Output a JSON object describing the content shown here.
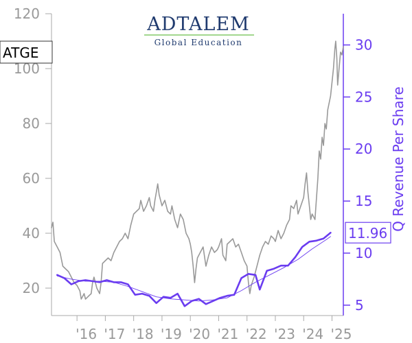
{
  "logo": {
    "name": "ADTALEM",
    "tagline": "Global Education",
    "name_color": "#1f3a6e",
    "accent_color": "#6abf4b"
  },
  "ticker": "ATGE",
  "chart_data": {
    "type": "line",
    "xlabel": "",
    "x_tick_labels": [
      "'16",
      "'17",
      "'18",
      "'19",
      "'20",
      "'21",
      "'22",
      "'23",
      "'24",
      "'25"
    ],
    "x_tick_years": [
      2016,
      2017,
      2018,
      2019,
      2020,
      2021,
      2022,
      2023,
      2024,
      2025
    ],
    "xlim": [
      2015.1,
      2025.4
    ],
    "left_axis": {
      "label": "",
      "ylim": [
        10,
        120
      ],
      "ticks": [
        20,
        40,
        60,
        80,
        100,
        120
      ],
      "color": "#999999"
    },
    "right_axis": {
      "label": "Q Revenue Per Share",
      "ylim": [
        4,
        33
      ],
      "ticks": [
        5,
        10,
        15,
        20,
        25,
        30
      ],
      "color": "#6a3cf0"
    },
    "last_value_label": "11.96",
    "series": [
      {
        "axis": "left",
        "color": "#999999",
        "points": [
          [
            2015.1,
            42
          ],
          [
            2015.15,
            44
          ],
          [
            2015.2,
            37
          ],
          [
            2015.3,
            35
          ],
          [
            2015.4,
            33
          ],
          [
            2015.5,
            28
          ],
          [
            2015.6,
            27
          ],
          [
            2015.7,
            26
          ],
          [
            2015.8,
            24
          ],
          [
            2015.9,
            22
          ],
          [
            2016.0,
            21
          ],
          [
            2016.1,
            19
          ],
          [
            2016.15,
            16
          ],
          [
            2016.25,
            18
          ],
          [
            2016.3,
            16
          ],
          [
            2016.4,
            17
          ],
          [
            2016.5,
            18
          ],
          [
            2016.55,
            22
          ],
          [
            2016.6,
            24
          ],
          [
            2016.7,
            20
          ],
          [
            2016.8,
            18
          ],
          [
            2016.85,
            22
          ],
          [
            2016.9,
            29
          ],
          [
            2017.0,
            30
          ],
          [
            2017.1,
            31
          ],
          [
            2017.2,
            30
          ],
          [
            2017.3,
            33
          ],
          [
            2017.4,
            35
          ],
          [
            2017.5,
            37
          ],
          [
            2017.6,
            38
          ],
          [
            2017.7,
            40
          ],
          [
            2017.8,
            38
          ],
          [
            2017.9,
            43
          ],
          [
            2018.0,
            47
          ],
          [
            2018.1,
            48
          ],
          [
            2018.2,
            49
          ],
          [
            2018.25,
            52
          ],
          [
            2018.35,
            48
          ],
          [
            2018.45,
            50
          ],
          [
            2018.55,
            53
          ],
          [
            2018.6,
            50
          ],
          [
            2018.7,
            48
          ],
          [
            2018.75,
            52
          ],
          [
            2018.8,
            55
          ],
          [
            2018.85,
            58
          ],
          [
            2018.9,
            54
          ],
          [
            2019.0,
            50
          ],
          [
            2019.1,
            52
          ],
          [
            2019.2,
            48
          ],
          [
            2019.3,
            47
          ],
          [
            2019.35,
            50
          ],
          [
            2019.45,
            45
          ],
          [
            2019.55,
            42
          ],
          [
            2019.65,
            47
          ],
          [
            2019.75,
            45
          ],
          [
            2019.85,
            40
          ],
          [
            2019.95,
            38
          ],
          [
            2020.0,
            36
          ],
          [
            2020.05,
            33
          ],
          [
            2020.1,
            28
          ],
          [
            2020.15,
            22
          ],
          [
            2020.2,
            27
          ],
          [
            2020.25,
            31
          ],
          [
            2020.35,
            33
          ],
          [
            2020.45,
            35
          ],
          [
            2020.55,
            28
          ],
          [
            2020.65,
            32
          ],
          [
            2020.75,
            35
          ],
          [
            2020.85,
            33
          ],
          [
            2020.95,
            34
          ],
          [
            2021.0,
            35
          ],
          [
            2021.1,
            38
          ],
          [
            2021.15,
            32
          ],
          [
            2021.25,
            30
          ],
          [
            2021.3,
            36
          ],
          [
            2021.4,
            37
          ],
          [
            2021.5,
            38
          ],
          [
            2021.6,
            35
          ],
          [
            2021.7,
            36
          ],
          [
            2021.8,
            33
          ],
          [
            2021.9,
            30
          ],
          [
            2022.0,
            28
          ],
          [
            2022.05,
            22
          ],
          [
            2022.1,
            18
          ],
          [
            2022.15,
            21
          ],
          [
            2022.25,
            24
          ],
          [
            2022.35,
            28
          ],
          [
            2022.45,
            32
          ],
          [
            2022.55,
            35
          ],
          [
            2022.65,
            37
          ],
          [
            2022.75,
            36
          ],
          [
            2022.85,
            39
          ],
          [
            2022.95,
            38
          ],
          [
            2023.0,
            37
          ],
          [
            2023.1,
            41
          ],
          [
            2023.2,
            38
          ],
          [
            2023.3,
            40
          ],
          [
            2023.4,
            43
          ],
          [
            2023.5,
            45
          ],
          [
            2023.55,
            50
          ],
          [
            2023.65,
            49
          ],
          [
            2023.75,
            52
          ],
          [
            2023.8,
            47
          ],
          [
            2023.9,
            50
          ],
          [
            2024.0,
            53
          ],
          [
            2024.05,
            58
          ],
          [
            2024.1,
            62
          ],
          [
            2024.15,
            55
          ],
          [
            2024.2,
            50
          ],
          [
            2024.25,
            45
          ],
          [
            2024.3,
            47
          ],
          [
            2024.4,
            45
          ],
          [
            2024.5,
            60
          ],
          [
            2024.55,
            70
          ],
          [
            2024.6,
            67
          ],
          [
            2024.65,
            75
          ],
          [
            2024.7,
            72
          ],
          [
            2024.75,
            80
          ],
          [
            2024.8,
            78
          ],
          [
            2024.85,
            85
          ],
          [
            2024.95,
            90
          ],
          [
            2025.0,
            95
          ],
          [
            2025.05,
            100
          ],
          [
            2025.1,
            107
          ],
          [
            2025.13,
            110
          ],
          [
            2025.17,
            104
          ],
          [
            2025.2,
            94
          ],
          [
            2025.25,
            100
          ],
          [
            2025.3,
            106
          ],
          [
            2025.35,
            105
          ],
          [
            2025.4,
            108
          ]
        ]
      },
      {
        "axis": "right",
        "color": "#6a3cf0",
        "points": [
          [
            2015.3,
            7.9
          ],
          [
            2015.55,
            7.6
          ],
          [
            2015.8,
            7.0
          ],
          [
            2016.05,
            7.3
          ],
          [
            2016.3,
            7.4
          ],
          [
            2016.55,
            7.3
          ],
          [
            2016.8,
            7.2
          ],
          [
            2017.05,
            7.4
          ],
          [
            2017.3,
            7.2
          ],
          [
            2017.55,
            7.2
          ],
          [
            2017.8,
            7.0
          ],
          [
            2018.05,
            6.0
          ],
          [
            2018.3,
            6.1
          ],
          [
            2018.55,
            5.9
          ],
          [
            2018.8,
            5.2
          ],
          [
            2019.05,
            5.8
          ],
          [
            2019.3,
            5.7
          ],
          [
            2019.55,
            6.1
          ],
          [
            2019.8,
            4.9
          ],
          [
            2020.05,
            5.4
          ],
          [
            2020.3,
            5.6
          ],
          [
            2020.55,
            5.1
          ],
          [
            2020.8,
            5.4
          ],
          [
            2021.05,
            5.7
          ],
          [
            2021.3,
            5.9
          ],
          [
            2021.55,
            6.0
          ],
          [
            2021.8,
            7.6
          ],
          [
            2022.05,
            8.0
          ],
          [
            2022.3,
            7.9
          ],
          [
            2022.45,
            6.5
          ],
          [
            2022.7,
            8.3
          ],
          [
            2022.95,
            8.5
          ],
          [
            2023.2,
            8.8
          ],
          [
            2023.45,
            8.8
          ],
          [
            2023.7,
            9.6
          ],
          [
            2023.95,
            10.6
          ],
          [
            2024.2,
            11.1
          ],
          [
            2024.45,
            11.2
          ],
          [
            2024.7,
            11.4
          ],
          [
            2024.95,
            11.96
          ]
        ]
      },
      {
        "axis": "right",
        "color": "#6a3cf0",
        "thin": true,
        "points": [
          [
            2015.3,
            7.8
          ],
          [
            2015.8,
            7.5
          ],
          [
            2016.3,
            7.3
          ],
          [
            2016.8,
            7.3
          ],
          [
            2017.3,
            7.2
          ],
          [
            2017.8,
            6.8
          ],
          [
            2018.3,
            6.3
          ],
          [
            2018.8,
            5.8
          ],
          [
            2019.3,
            5.6
          ],
          [
            2019.8,
            5.5
          ],
          [
            2020.3,
            5.4
          ],
          [
            2020.8,
            5.5
          ],
          [
            2021.3,
            5.7
          ],
          [
            2021.8,
            6.4
          ],
          [
            2022.3,
            7.2
          ],
          [
            2022.8,
            7.9
          ],
          [
            2023.3,
            8.6
          ],
          [
            2023.8,
            9.4
          ],
          [
            2024.3,
            10.4
          ],
          [
            2024.8,
            11.3
          ],
          [
            2024.95,
            11.6
          ]
        ]
      }
    ]
  }
}
